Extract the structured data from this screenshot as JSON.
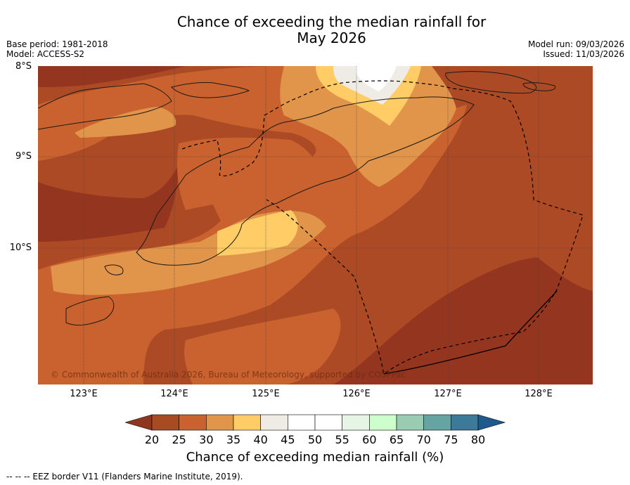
{
  "title_line1": "Chance of exceeding the median rainfall for",
  "title_line2": "May 2026",
  "base_period": "Base period: 1981-2018",
  "model": "Model: ACCESS-S2",
  "model_run": "Model run: 09/03/2026",
  "issued": "Issued: 11/03/2026",
  "lat_labels": [
    "8°S",
    "9°S",
    "10°S"
  ],
  "lon_labels": [
    "123°E",
    "124°E",
    "125°E",
    "126°E",
    "127°E",
    "128°E"
  ],
  "copyright": "© Commonwealth of Australia 2026, Bureau of Meteorology, supported by COSPPac",
  "colorbar": {
    "title": "Chance of exceeding median rainfall (%)",
    "ticks": [
      "20",
      "25",
      "30",
      "35",
      "40",
      "45",
      "50",
      "55",
      "60",
      "65",
      "70",
      "75",
      "80"
    ],
    "colors": [
      "#a84a22",
      "#c9622e",
      "#e0954a",
      "#ffcc66",
      "#efece6",
      "#ffffff",
      "#ffffff",
      "#e6f5e6",
      "#ccffcc",
      "#99ccb3",
      "#66a3a3",
      "#3d7a99"
    ],
    "low_color": "#8f3520",
    "high_color": "#1f5a8c"
  },
  "footnote": "--  --  -- EEZ border V11 (Flanders Marine Institute, 2019)."
}
